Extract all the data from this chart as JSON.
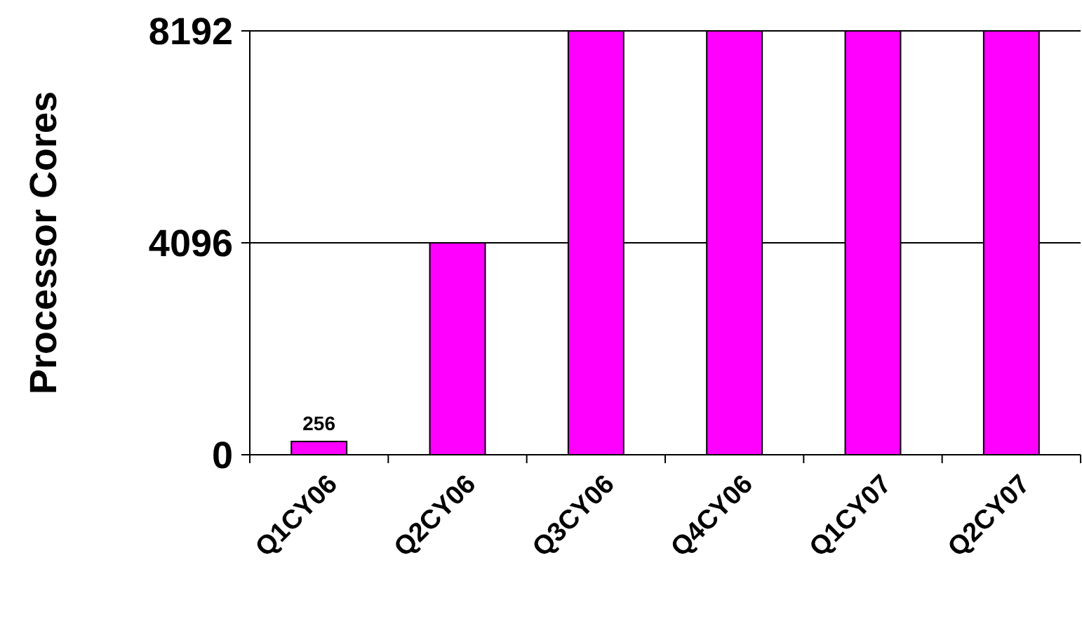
{
  "chart_data": {
    "type": "bar",
    "ylabel": "Processor Cores",
    "categories": [
      "Q1CY06",
      "Q2CY06",
      "Q3CY06",
      "Q4CY06",
      "Q1CY07",
      "Q2CY07"
    ],
    "values": [
      256,
      4096,
      8192,
      8192,
      8192,
      8192
    ],
    "value_labels": [
      "256",
      null,
      null,
      null,
      null,
      null
    ],
    "color": "#ff00ff",
    "ylim": [
      0,
      8192
    ],
    "yticks": [
      0,
      4096,
      8192
    ],
    "grid": "y"
  }
}
